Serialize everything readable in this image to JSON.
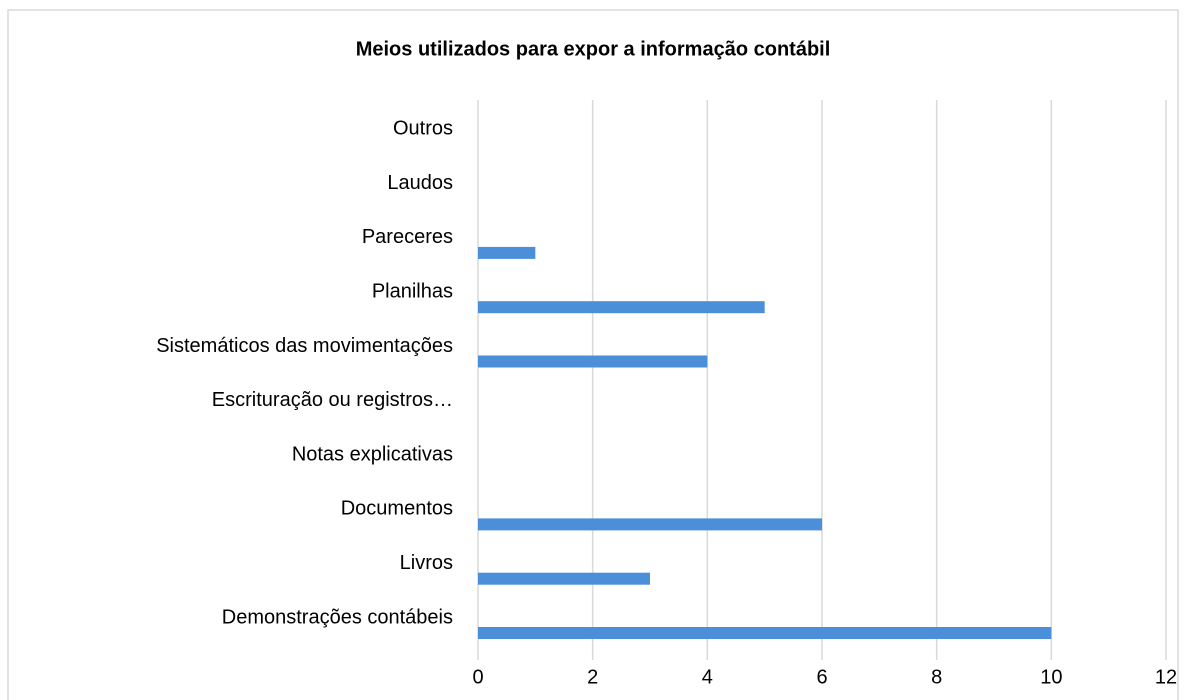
{
  "chart_data": {
    "type": "bar",
    "orientation": "horizontal",
    "title": "Meios utilizados para expor a informação contábil",
    "categories": [
      "Demonstrações contábeis",
      "Livros",
      "Documentos",
      "Notas explicativas",
      "Escrituração ou registros…",
      "Sistemáticos das movimentações",
      "Planilhas",
      "Pareceres",
      "Laudos",
      "Outros"
    ],
    "values": [
      10,
      3,
      6,
      0,
      0,
      4,
      5,
      1,
      0,
      0
    ],
    "color": "#4a8fd8",
    "xlim": [
      0,
      12
    ],
    "xticks": [
      0,
      2,
      4,
      6,
      8,
      10,
      12
    ],
    "grid": true
  }
}
